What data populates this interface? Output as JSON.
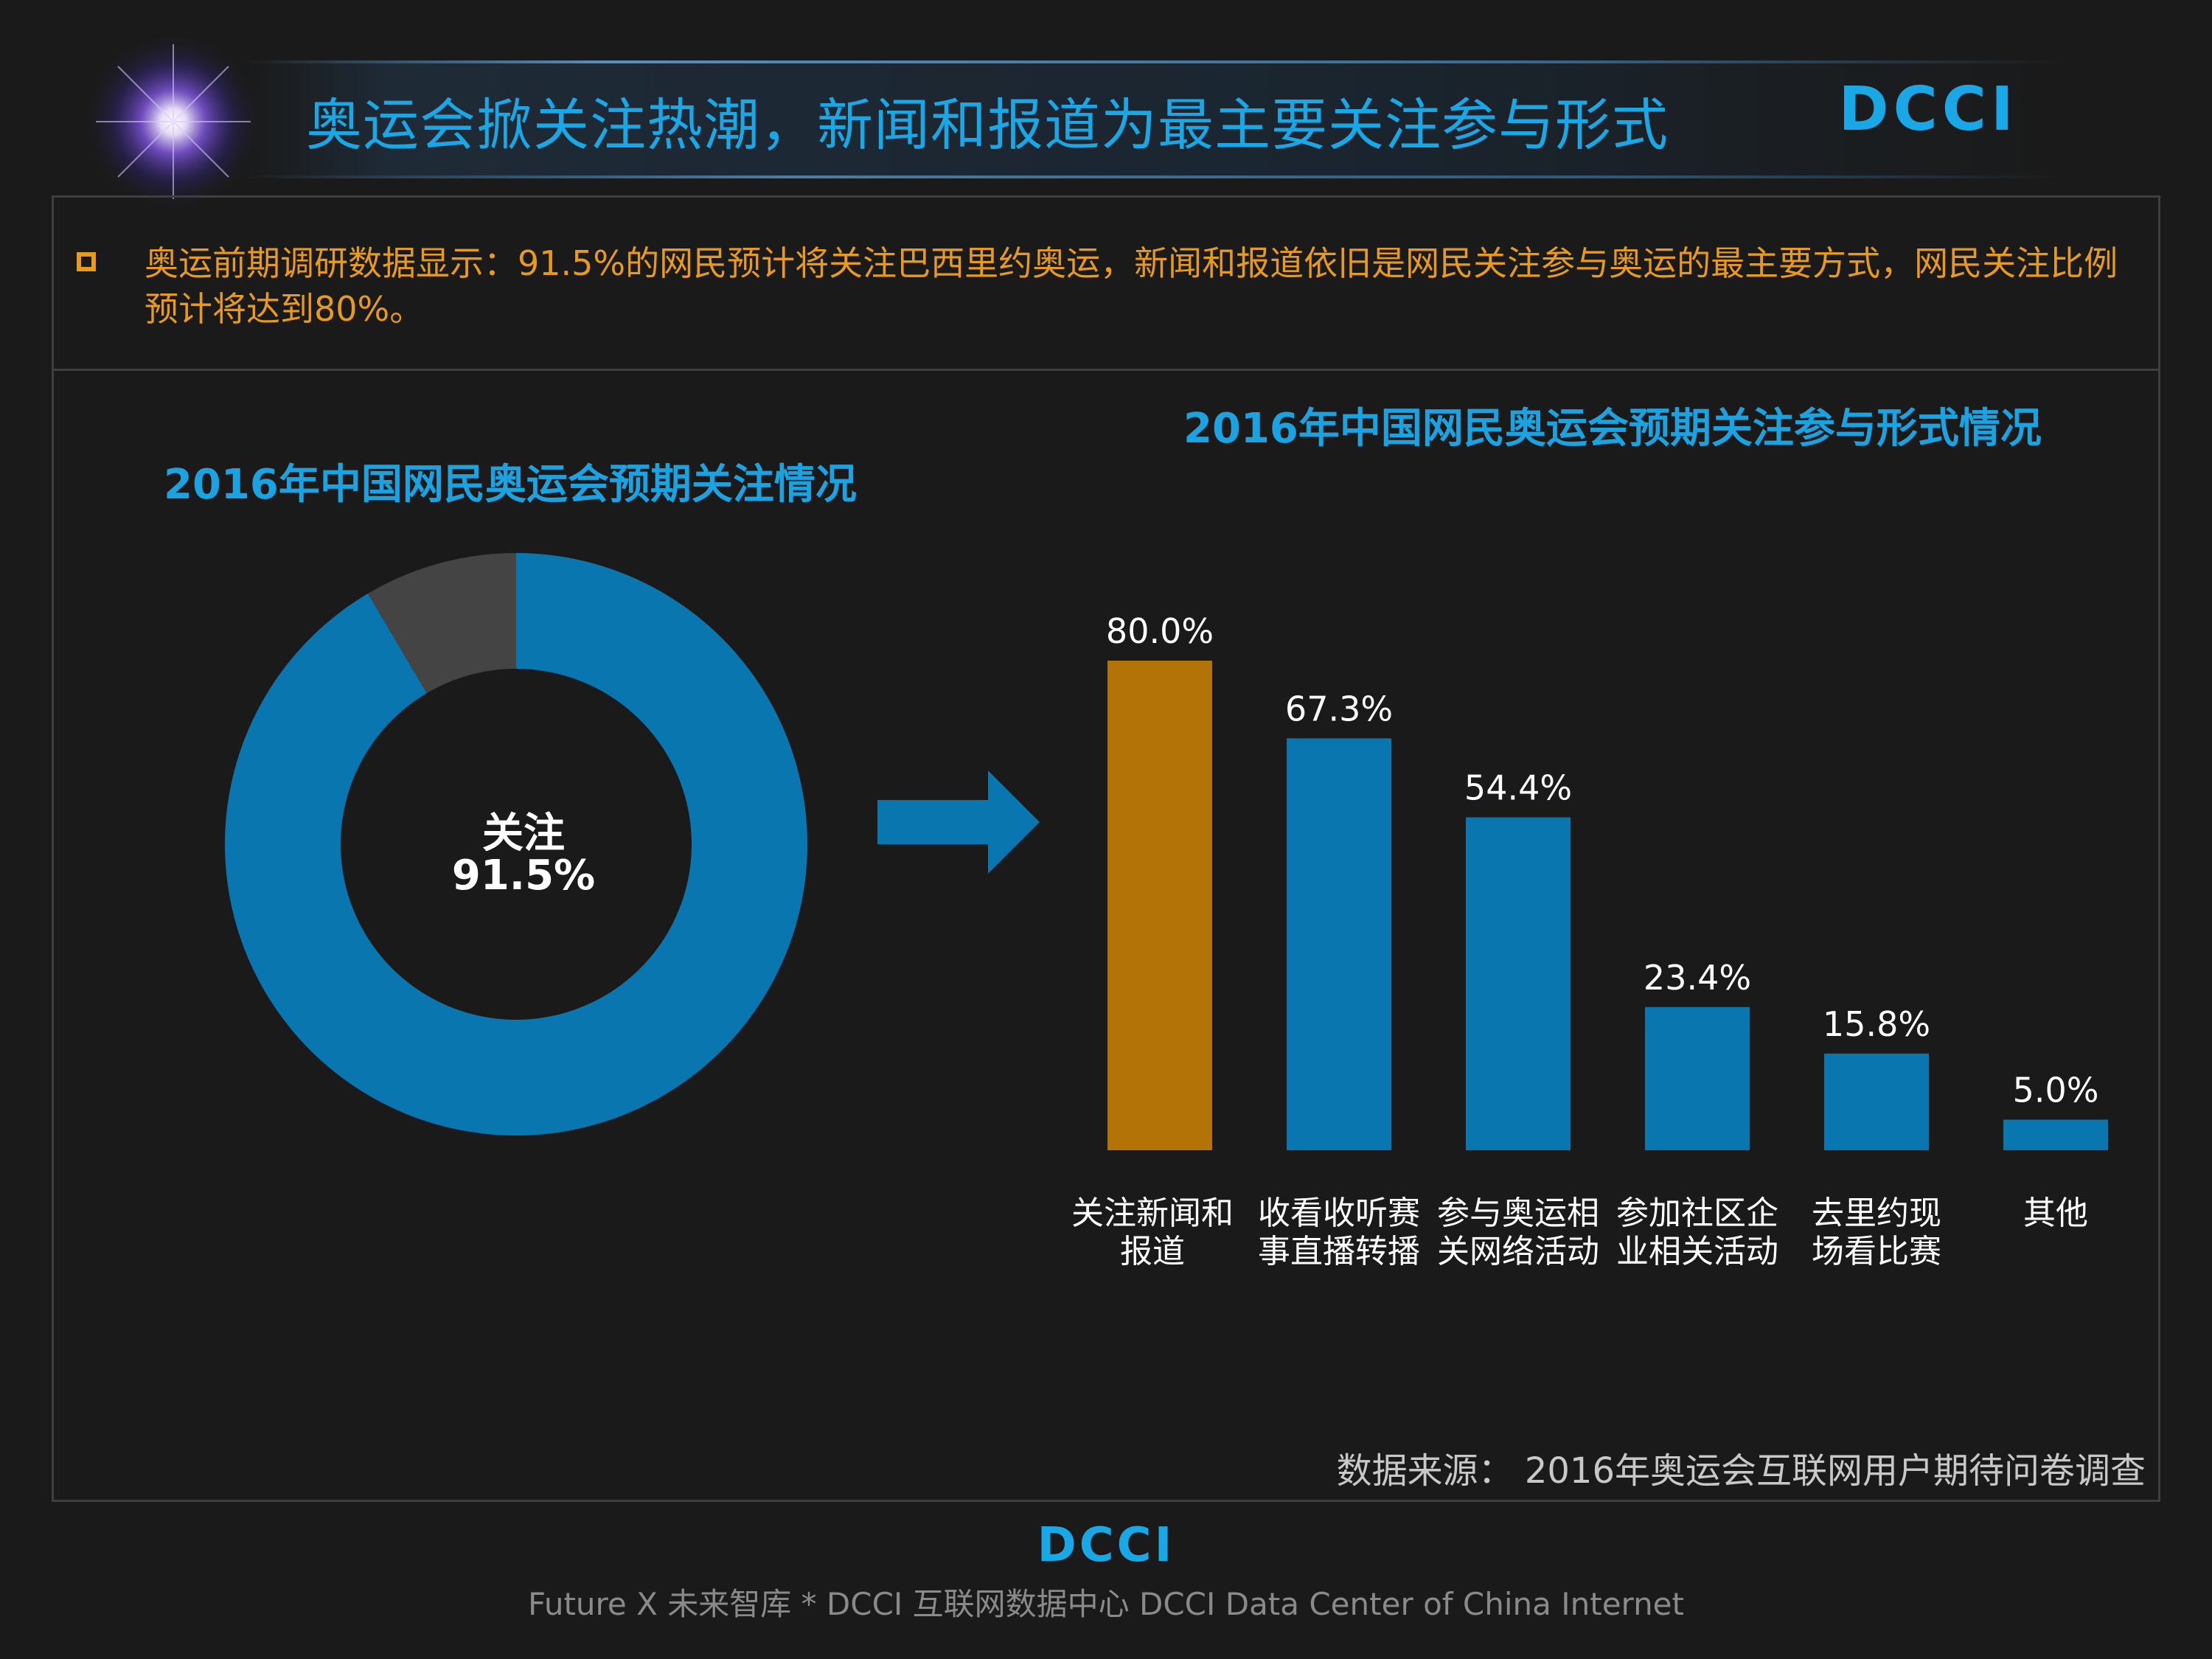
{
  "header": {
    "title": "奥运会掀关注热潮，新闻和报道为最主要关注参与形式",
    "logo_text": "DCCI"
  },
  "summary": {
    "text": "奥运前期调研数据显示：91.5%的网民预计将关注巴西里约奥运，新闻和报道依旧是网民关注参与奥运的最主要方式，网民关注比例预计将达到80%。"
  },
  "colors": {
    "accent_blue": "#0a76b0",
    "highlight_orange": "#b37306",
    "other_gray": "#444444",
    "title_blue": "#1aa3e0",
    "summary_orange": "#e89a1c"
  },
  "chart_data": [
    {
      "type": "pie",
      "title": "2016年中国网民奥运会预期关注情况",
      "center_label": "关注",
      "center_value": "91.5%",
      "slices": [
        {
          "name": "关注",
          "value": 91.5,
          "color": "#0a76b0"
        },
        {
          "name": "",
          "value": 8.5,
          "color": "#444444"
        }
      ]
    },
    {
      "type": "bar",
      "title": "2016年中国网民奥运会预期关注参与形式情况",
      "categories": [
        [
          "关注新闻和",
          "报道"
        ],
        [
          "收看收听赛",
          "事直播转播"
        ],
        [
          "参与奥运相",
          "关网络活动"
        ],
        [
          "参加社区企",
          "业相关活动"
        ],
        [
          "去里约现",
          "场看比赛"
        ],
        [
          "其他"
        ]
      ],
      "values": [
        80.0,
        67.3,
        54.4,
        23.4,
        15.8,
        5.0
      ],
      "value_labels": [
        "80.0%",
        "67.3%",
        "54.4%",
        "23.4%",
        "15.8%",
        "5.0%"
      ],
      "bar_colors": [
        "#b37306",
        "#0a76b0",
        "#0a76b0",
        "#0a76b0",
        "#0a76b0",
        "#0a76b0"
      ],
      "ylim": [
        0,
        100
      ],
      "grid": false
    }
  ],
  "source": {
    "text": "数据来源： 2016年奥运会互联网用户期待问卷调查"
  },
  "footer": {
    "text": "Future X 未来智库 * DCCI 互联网数据中心 DCCI Data Center of China Internet",
    "logo_text": "DCCI"
  }
}
